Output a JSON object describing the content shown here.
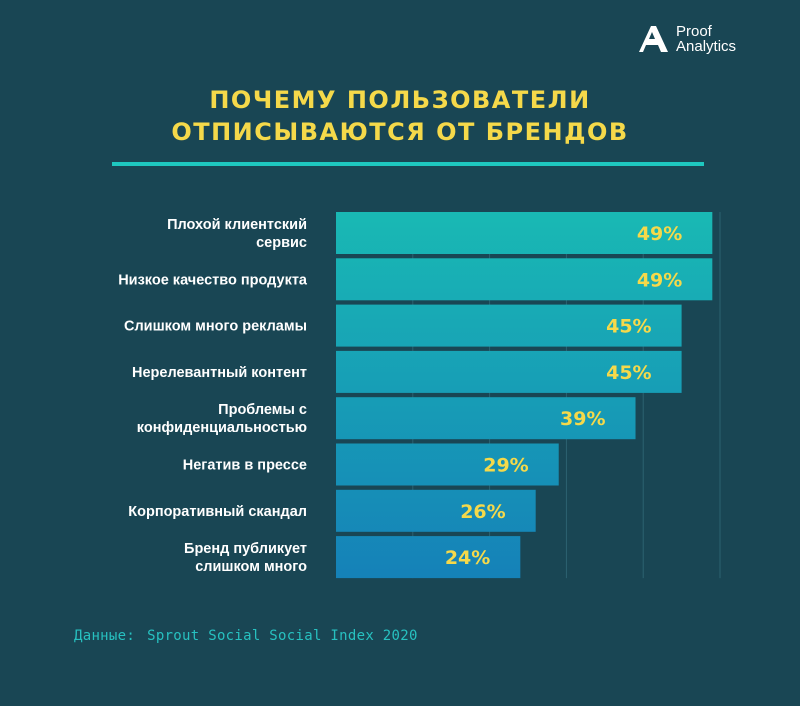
{
  "logo": {
    "line1": "Proof",
    "line2": "Analytics",
    "icon": "letter-a-logo-icon"
  },
  "title": {
    "line1": "ПОЧЕМУ ПОЛЬЗОВАТЕЛИ",
    "line2": "ОТПИСЫВАЮТСЯ ОТ БРЕНДОВ"
  },
  "source": {
    "prefix": "Данные:",
    "text": "Sprout Social Social Index 2020"
  },
  "colors": {
    "background": "#194654",
    "title": "#f5d94a",
    "accent": "#1ec8c0",
    "value_label": "#f5d94a",
    "bar_top": "#19b9b4",
    "bar_bottom": "#1581b8"
  },
  "chart_data": {
    "type": "bar",
    "orientation": "horizontal",
    "categories": [
      [
        "Плохой клиентский",
        "сервис"
      ],
      [
        "Низкое качество продукта"
      ],
      [
        "Слишком много рекламы"
      ],
      [
        "Нерелевантный контент"
      ],
      [
        "Проблемы с",
        "конфиденциальностью"
      ],
      [
        "Негатив в прессе"
      ],
      [
        "Корпоративный скандал"
      ],
      [
        "Бренд публикует",
        "слишком много"
      ]
    ],
    "values": [
      49,
      49,
      45,
      45,
      39,
      29,
      26,
      24
    ],
    "value_labels": [
      "49%",
      "49%",
      "45%",
      "45%",
      "39%",
      "29%",
      "26%",
      "24%"
    ],
    "unit": "%",
    "xlim": [
      0,
      50
    ],
    "grid": true
  }
}
